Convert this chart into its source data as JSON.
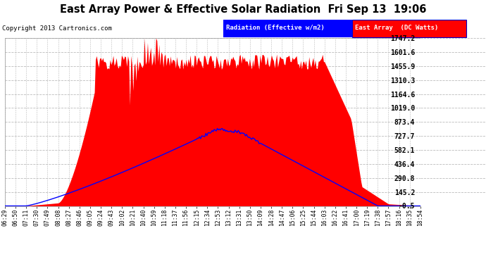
{
  "title": "East Array Power & Effective Solar Radiation  Fri Sep 13  19:06",
  "copyright": "Copyright 2013 Cartronics.com",
  "legend_radiation": "Radiation (Effective w/m2)",
  "legend_east": "East Array  (DC Watts)",
  "background_color": "#ffffff",
  "plot_bg_color": "#ffffff",
  "grid_color": "#aaaaaa",
  "ylim": [
    -0.5,
    1747.2
  ],
  "yticks": [
    -0.5,
    145.2,
    290.8,
    436.4,
    582.1,
    727.7,
    873.4,
    1019.0,
    1164.6,
    1310.3,
    1455.9,
    1601.6,
    1747.2
  ],
  "fill_color": "#ff0000",
  "radiation_color": "#0000ff",
  "xtick_labels": [
    "06:29",
    "06:50",
    "07:11",
    "07:30",
    "07:49",
    "08:08",
    "08:27",
    "08:46",
    "09:05",
    "09:24",
    "09:43",
    "10:02",
    "10:21",
    "10:40",
    "10:59",
    "11:18",
    "11:37",
    "11:56",
    "12:15",
    "12:34",
    "12:53",
    "13:12",
    "13:31",
    "13:50",
    "14:09",
    "14:28",
    "14:47",
    "15:06",
    "15:25",
    "15:44",
    "16:03",
    "16:22",
    "16:41",
    "17:00",
    "17:19",
    "17:38",
    "17:57",
    "18:16",
    "18:35",
    "18:54"
  ],
  "n_points": 400
}
